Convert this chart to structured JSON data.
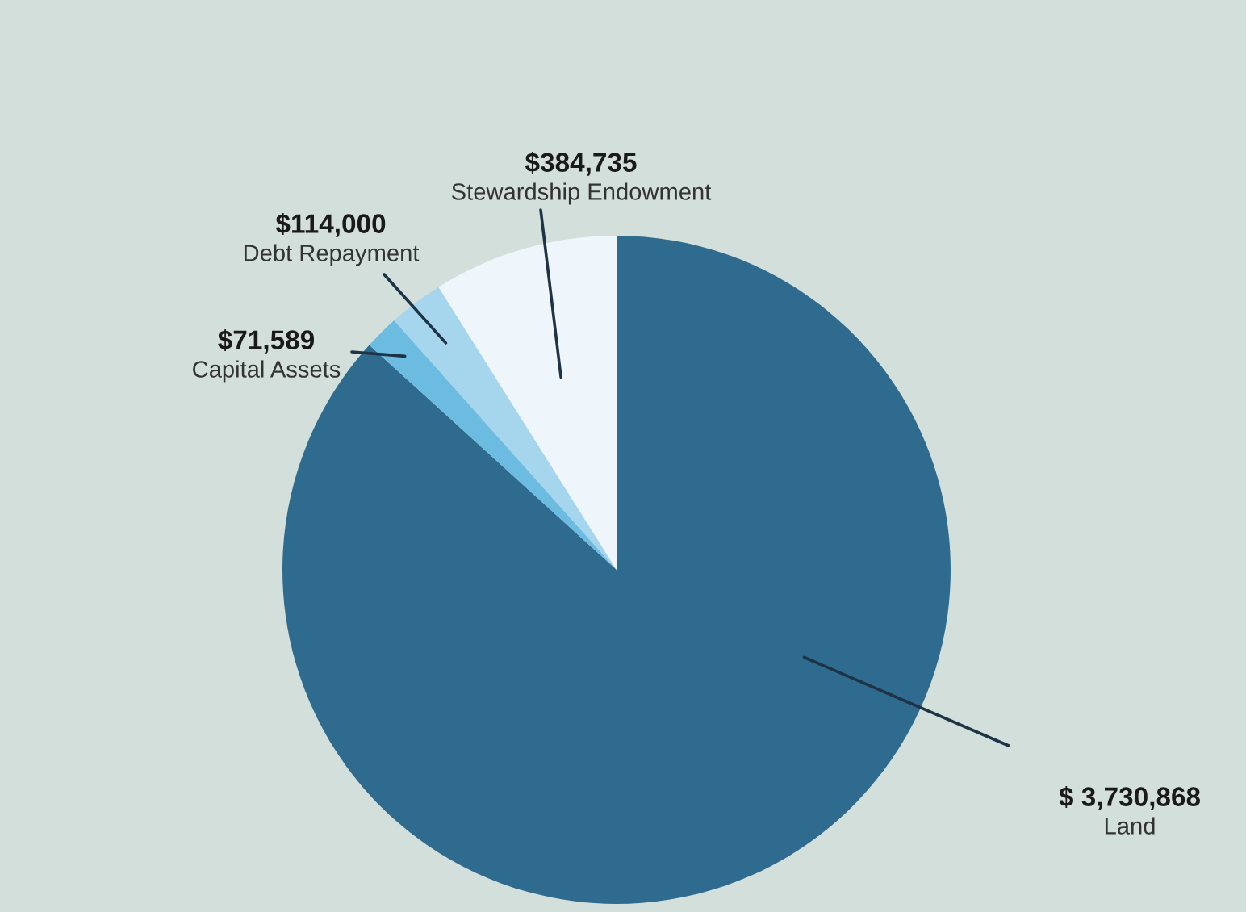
{
  "chart_data": {
    "type": "pie",
    "categories": [
      "Land",
      "Capital Assets",
      "Debt Repayment",
      "Stewardship Endowment"
    ],
    "values": [
      3730868,
      71589,
      114000,
      384735
    ],
    "value_labels": [
      "$ 3,730,868",
      "$71,589",
      "$114,000",
      "$384,735"
    ],
    "colors": [
      "#2f6b8f",
      "#6cbbe0",
      "#a6d5ee",
      "#eef6fb"
    ],
    "legend": false
  }
}
